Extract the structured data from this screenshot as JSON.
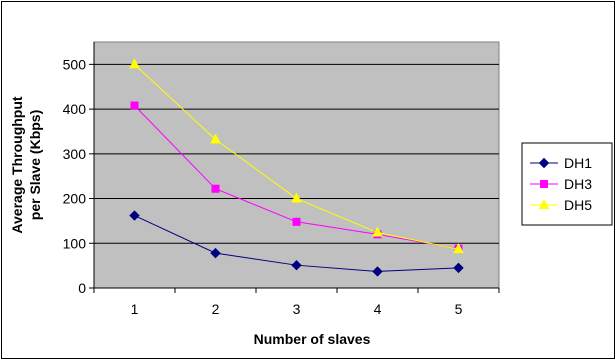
{
  "chart_data": {
    "type": "line",
    "title": "",
    "xlabel": "Number of slaves",
    "ylabel_lines": [
      "Average Throughput",
      "per Slave (Kbps)"
    ],
    "categories": [
      "1",
      "2",
      "3",
      "4",
      "5"
    ],
    "ylim": [
      0,
      550
    ],
    "yticks": [
      0,
      100,
      200,
      300,
      400,
      500
    ],
    "grid": true,
    "plot_background": "#c0c0c0",
    "legend_position": "right",
    "series": [
      {
        "name": "DH1",
        "values": [
          162,
          78,
          51,
          37,
          45
        ],
        "color": "#000080",
        "marker": "diamond"
      },
      {
        "name": "DH3",
        "values": [
          408,
          222,
          148,
          120,
          88
        ],
        "color": "#ff00ff",
        "marker": "square"
      },
      {
        "name": "DH5",
        "values": [
          500,
          332,
          200,
          124,
          87
        ],
        "color": "#ffff00",
        "marker": "triangle"
      }
    ]
  }
}
